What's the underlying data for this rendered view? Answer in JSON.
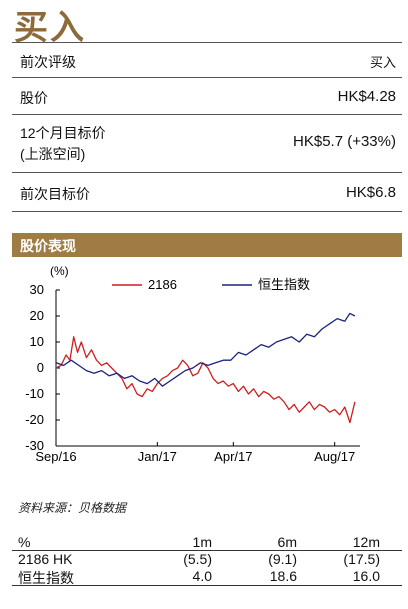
{
  "rating": "买入",
  "info_rows": [
    {
      "label": "前次评级",
      "value": "买入"
    },
    {
      "label": "股价",
      "value": "HK$4.28"
    },
    {
      "label_line1": "12个月目标价",
      "label_line2": "(上涨空间)",
      "value": "HK$5.7 (+33%)"
    },
    {
      "label": "前次目标价",
      "value": "HK$6.8"
    }
  ],
  "section_title": "股价表现",
  "chart_data": {
    "type": "line",
    "ylabel": "(%)",
    "ylim": [
      -30,
      30
    ],
    "yticks": [
      30,
      20,
      10,
      0,
      -10,
      -20,
      -30
    ],
    "xticks": [
      "Sep/16",
      "Jan/17",
      "Apr/17",
      "Aug/17"
    ],
    "xtick_positions": [
      0,
      4,
      7,
      11
    ],
    "xlim": [
      0,
      12
    ],
    "grid": false,
    "legend_position": "top",
    "series": [
      {
        "name": "2186",
        "color": "#cc1f1f",
        "x": [
          0,
          0.2,
          0.4,
          0.55,
          0.7,
          0.85,
          1.0,
          1.2,
          1.4,
          1.6,
          1.8,
          2.0,
          2.2,
          2.4,
          2.6,
          2.8,
          3.0,
          3.2,
          3.4,
          3.6,
          3.8,
          4.0,
          4.2,
          4.4,
          4.6,
          4.8,
          5.0,
          5.2,
          5.4,
          5.6,
          5.8,
          6.0,
          6.2,
          6.4,
          6.6,
          6.8,
          7.0,
          7.2,
          7.4,
          7.6,
          7.8,
          8.0,
          8.2,
          8.4,
          8.6,
          8.8,
          9.0,
          9.2,
          9.4,
          9.6,
          9.8,
          10.0,
          10.2,
          10.4,
          10.6,
          10.8,
          11.0,
          11.2,
          11.4,
          11.6,
          11.8
        ],
        "y": [
          0,
          1,
          5,
          3,
          12,
          6,
          10,
          4,
          7,
          3,
          1,
          2,
          0,
          -2,
          -4,
          -8,
          -6,
          -10,
          -11,
          -8,
          -9,
          -6,
          -4,
          -3,
          -1,
          0,
          3,
          1,
          -3,
          -2,
          2,
          0,
          -4,
          -6,
          -5,
          -7,
          -6,
          -9,
          -7,
          -10,
          -8,
          -11,
          -9,
          -10,
          -12,
          -11,
          -13,
          -16,
          -14,
          -17,
          -15,
          -13,
          -16,
          -14,
          -15,
          -17,
          -16,
          -18,
          -15,
          -21,
          -13
        ]
      },
      {
        "name": "恒生指数",
        "color": "#1a237e",
        "x": [
          0,
          0.3,
          0.6,
          0.9,
          1.2,
          1.5,
          1.8,
          2.1,
          2.4,
          2.7,
          3.0,
          3.3,
          3.6,
          3.9,
          4.2,
          4.5,
          4.8,
          5.1,
          5.4,
          5.7,
          6.0,
          6.3,
          6.6,
          6.9,
          7.2,
          7.5,
          7.8,
          8.1,
          8.4,
          8.7,
          9.0,
          9.3,
          9.6,
          9.9,
          10.2,
          10.5,
          10.8,
          11.1,
          11.4,
          11.6,
          11.8
        ],
        "y": [
          2,
          1,
          3,
          1,
          -1,
          -2,
          -1,
          -3,
          -2,
          -4,
          -3,
          -5,
          -6,
          -4,
          -7,
          -5,
          -3,
          -1,
          0,
          2,
          1,
          2,
          3,
          3,
          6,
          5,
          7,
          9,
          8,
          10,
          11,
          12,
          10,
          13,
          12,
          15,
          17,
          19,
          18,
          21,
          20
        ]
      }
    ]
  },
  "source": "资料来源：贝格数据",
  "performance": {
    "headers": [
      "%",
      "1m",
      "6m",
      "12m"
    ],
    "rows": [
      [
        "2186 HK",
        "(5.5)",
        "(9.1)",
        "(17.5)"
      ],
      [
        "恒生指数",
        "4.0",
        "18.6",
        "16.0"
      ]
    ]
  }
}
